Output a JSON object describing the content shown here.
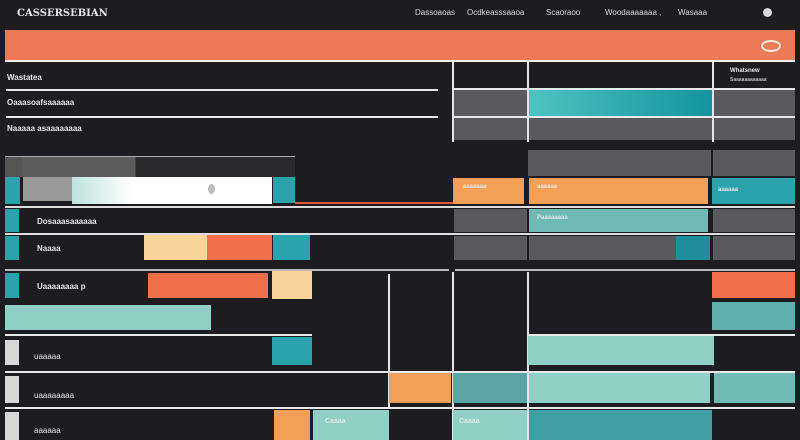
{
  "header": {
    "title": "CASSERSEBIAN",
    "nav": [
      "Dassoaoas",
      "Ocdkeasssaaoa",
      "Scaoraoo",
      "Woodaaaaaaa ,",
      "Wasaaa"
    ]
  },
  "colors": {
    "background": "#1d1c21",
    "banner": "#ef7a57",
    "teal": "#2aa3ad",
    "mint": "#8fcfc6",
    "orange": "#f26f4c",
    "amber": "#f5a058"
  },
  "left_list": [
    "Wastatea",
    "Oaaasoafsaaaaaa",
    "Naaaaa asaaaaaaaa"
  ],
  "panel": {
    "title": "Whatsnew",
    "subtitle": "Saaaaaaaaaaaa"
  },
  "rows": [
    {
      "label": "Dosaaasaaaaaa"
    },
    {
      "label": "Naaaa"
    },
    {
      "label": "Uaaaaaaaa p"
    },
    {
      "label": "uaaaaa"
    },
    {
      "label": "uaaaaaaaa"
    },
    {
      "label": "aaaaaa"
    }
  ],
  "cells": {
    "orange_a": "aaaaaaa",
    "orange_b": "aaaaaa",
    "teal_a": "aaaaaa",
    "mint_a": "Paaaaaaaa",
    "mint_b": "Caaaa",
    "mint_c": "Caaaa"
  }
}
